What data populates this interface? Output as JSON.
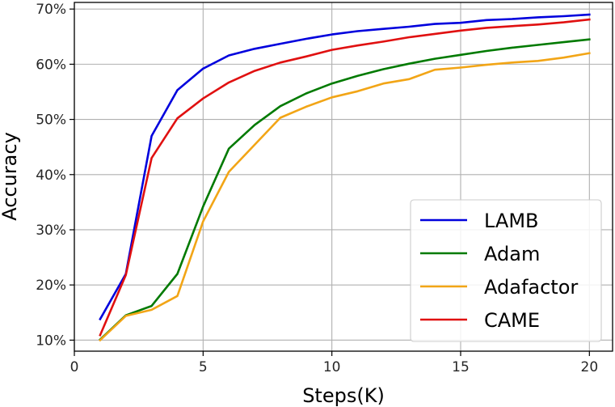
{
  "chart_data": {
    "type": "line",
    "title": "",
    "xlabel": "Steps(K)",
    "ylabel": "Accuracy",
    "xlim": [
      0,
      20.9
    ],
    "ylim": [
      8.0,
      71.2
    ],
    "xticks": [
      0,
      5,
      10,
      15,
      20
    ],
    "xtick_labels": [
      "0",
      "5",
      "10",
      "15",
      "20"
    ],
    "yticks": [
      10,
      20,
      30,
      40,
      50,
      60,
      70
    ],
    "ytick_labels": [
      "10%",
      "20%",
      "30%",
      "40%",
      "50%",
      "60%",
      "70%"
    ],
    "grid": true,
    "legend_position": "lower-right",
    "x": [
      1,
      2,
      3,
      4,
      5,
      6,
      7,
      8,
      9,
      10,
      11,
      12,
      13,
      14,
      15,
      16,
      17,
      18,
      19,
      20
    ],
    "series": [
      {
        "name": "LAMB",
        "color": "#0000dd",
        "values": [
          13.8,
          22.0,
          47.0,
          55.3,
          59.2,
          61.6,
          62.8,
          63.7,
          64.6,
          65.4,
          66.0,
          66.4,
          66.8,
          67.3,
          67.5,
          68.0,
          68.2,
          68.5,
          68.7,
          69.0
        ]
      },
      {
        "name": "Adam",
        "color": "#007a00",
        "values": [
          10.1,
          14.5,
          16.2,
          22.0,
          34.2,
          44.7,
          49.0,
          52.4,
          54.7,
          56.5,
          57.9,
          59.1,
          60.1,
          61.0,
          61.7,
          62.4,
          63.0,
          63.5,
          64.0,
          64.5
        ]
      },
      {
        "name": "Adafactor",
        "color": "#f2a516",
        "values": [
          10.0,
          14.4,
          15.5,
          18.0,
          31.5,
          40.5,
          45.4,
          50.3,
          52.3,
          54.0,
          55.1,
          56.5,
          57.3,
          59.0,
          59.4,
          59.9,
          60.3,
          60.6,
          61.2,
          62.0
        ]
      },
      {
        "name": "CAME",
        "color": "#e01010",
        "values": [
          10.9,
          21.8,
          43.0,
          50.2,
          53.8,
          56.7,
          58.8,
          60.3,
          61.4,
          62.6,
          63.4,
          64.1,
          64.9,
          65.5,
          66.1,
          66.6,
          66.9,
          67.2,
          67.6,
          68.1
        ]
      }
    ]
  }
}
